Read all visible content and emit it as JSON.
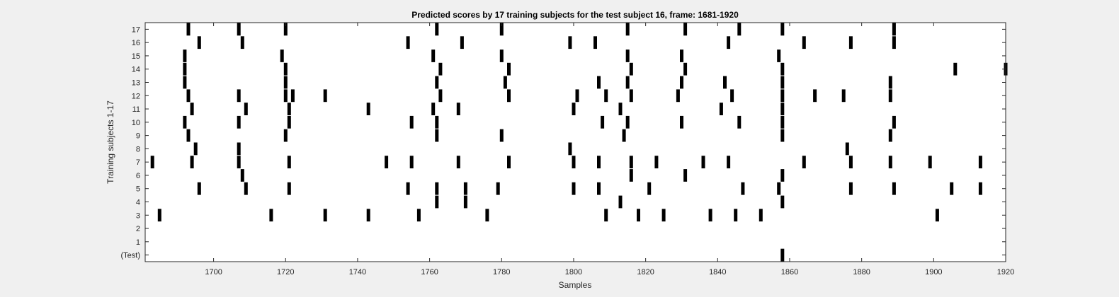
{
  "colors": {
    "figure_bg": "#f0f0f0",
    "axes_bg": "#ffffff",
    "mark": "#000000",
    "text": "#262626",
    "axis": "#262626"
  },
  "chart_data": {
    "type": "raster",
    "title": "Predicted scores by 17 training subjects for the test subject 16, frame: 1681-1920",
    "xlabel": "Samples",
    "ylabel": "Training subjects 1-17",
    "xlim": [
      1681,
      1920
    ],
    "xticks": [
      1700,
      1720,
      1740,
      1760,
      1780,
      1800,
      1820,
      1840,
      1860,
      1880,
      1900,
      1920
    ],
    "rows": [
      "(Test)",
      "1",
      "2",
      "3",
      "4",
      "5",
      "6",
      "7",
      "8",
      "9",
      "10",
      "11",
      "12",
      "13",
      "14",
      "15",
      "16",
      "17"
    ],
    "grid": false,
    "events": {
      "(Test)": [
        1858
      ],
      "1": [],
      "2": [],
      "3": [
        1685,
        1716,
        1731,
        1743,
        1757,
        1776,
        1809,
        1818,
        1825,
        1838,
        1845,
        1852,
        1901
      ],
      "4": [
        1762,
        1770,
        1813,
        1858
      ],
      "5": [
        1696,
        1709,
        1721,
        1754,
        1762,
        1770,
        1779,
        1800,
        1807,
        1821,
        1847,
        1857,
        1877,
        1889,
        1905,
        1913
      ],
      "6": [
        1708,
        1816,
        1831,
        1858
      ],
      "7": [
        1683,
        1694,
        1707,
        1721,
        1748,
        1755,
        1768,
        1782,
        1800,
        1807,
        1816,
        1823,
        1836,
        1843,
        1864,
        1877,
        1888,
        1899,
        1913
      ],
      "8": [
        1695,
        1707,
        1799,
        1876
      ],
      "9": [
        1693,
        1720,
        1762,
        1780,
        1814,
        1858,
        1888
      ],
      "10": [
        1692,
        1707,
        1721,
        1755,
        1762,
        1808,
        1815,
        1830,
        1846,
        1858,
        1889
      ],
      "11": [
        1694,
        1709,
        1721,
        1743,
        1761,
        1768,
        1800,
        1813,
        1841,
        1858
      ],
      "12": [
        1693,
        1707,
        1720,
        1722,
        1731,
        1763,
        1782,
        1801,
        1809,
        1816,
        1829,
        1844,
        1858,
        1867,
        1875,
        1888
      ],
      "13": [
        1692,
        1720,
        1762,
        1781,
        1807,
        1815,
        1830,
        1842,
        1858,
        1888
      ],
      "14": [
        1692,
        1720,
        1763,
        1782,
        1816,
        1831,
        1858,
        1906,
        1920
      ],
      "15": [
        1692,
        1719,
        1761,
        1780,
        1815,
        1830,
        1857
      ],
      "16": [
        1696,
        1708,
        1754,
        1769,
        1799,
        1806,
        1843,
        1864,
        1877,
        1889
      ],
      "17": [
        1693,
        1707,
        1720,
        1762,
        1780,
        1815,
        1831,
        1846,
        1858,
        1889
      ]
    }
  }
}
